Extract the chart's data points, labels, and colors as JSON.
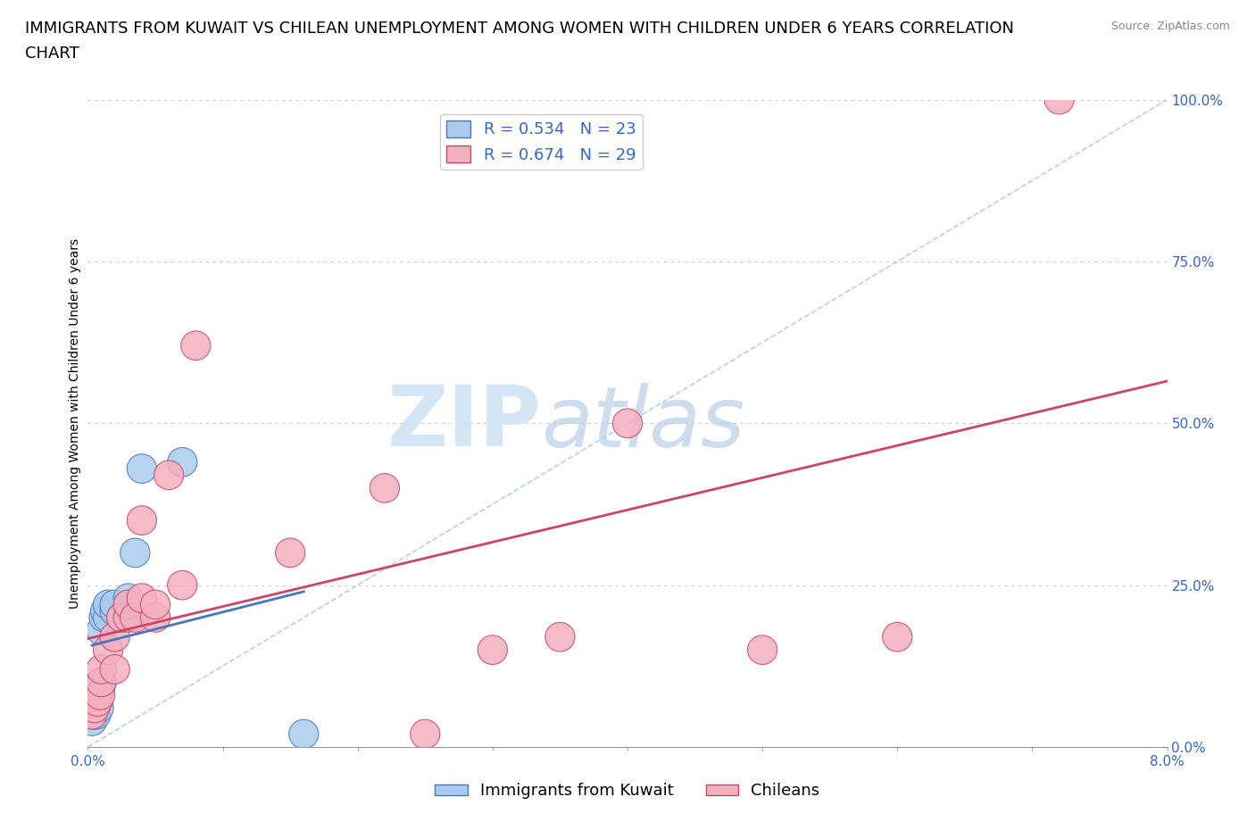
{
  "title_line1": "IMMIGRANTS FROM KUWAIT VS CHILEAN UNEMPLOYMENT AMONG WOMEN WITH CHILDREN UNDER 6 YEARS CORRELATION",
  "title_line2": "CHART",
  "source": "Source: ZipAtlas.com",
  "ylabel": "Unemployment Among Women with Children Under 6 years",
  "xlim": [
    0.0,
    0.08
  ],
  "ylim": [
    0.0,
    1.0
  ],
  "ytick_positions": [
    0.0,
    0.25,
    0.5,
    0.75,
    1.0
  ],
  "yticklabels": [
    "0.0%",
    "25.0%",
    "50.0%",
    "75.0%",
    "100.0%"
  ],
  "kuwait_R": 0.534,
  "kuwait_N": 23,
  "chilean_R": 0.674,
  "chilean_N": 29,
  "kuwait_color": "#aaccee",
  "chilean_color": "#f5b0c0",
  "kuwait_line_color": "#4477bb",
  "chilean_line_color": "#cc4466",
  "background_color": "#ffffff",
  "grid_color": "#cccccc",
  "watermark_color": "#d0e4f5",
  "tick_color": "#3366cc",
  "kuwait_x": [
    0.0003,
    0.0004,
    0.0005,
    0.0005,
    0.0006,
    0.0007,
    0.0008,
    0.0009,
    0.001,
    0.001,
    0.0012,
    0.0013,
    0.0015,
    0.0015,
    0.002,
    0.002,
    0.0025,
    0.003,
    0.003,
    0.0035,
    0.004,
    0.007,
    0.016
  ],
  "kuwait_y": [
    0.04,
    0.05,
    0.06,
    0.07,
    0.05,
    0.08,
    0.06,
    0.09,
    0.1,
    0.18,
    0.2,
    0.21,
    0.2,
    0.22,
    0.21,
    0.22,
    0.2,
    0.21,
    0.23,
    0.3,
    0.43,
    0.44,
    0.02
  ],
  "chilean_x": [
    0.0003,
    0.0005,
    0.0007,
    0.0009,
    0.001,
    0.001,
    0.0015,
    0.002,
    0.002,
    0.0025,
    0.003,
    0.003,
    0.0035,
    0.004,
    0.004,
    0.005,
    0.005,
    0.006,
    0.007,
    0.008,
    0.015,
    0.022,
    0.025,
    0.03,
    0.035,
    0.04,
    0.05,
    0.06,
    0.072
  ],
  "chilean_y": [
    0.05,
    0.06,
    0.07,
    0.08,
    0.1,
    0.12,
    0.15,
    0.12,
    0.17,
    0.2,
    0.2,
    0.22,
    0.2,
    0.23,
    0.35,
    0.2,
    0.22,
    0.42,
    0.25,
    0.62,
    0.3,
    0.4,
    0.02,
    0.15,
    0.17,
    0.5,
    0.15,
    0.17,
    1.0
  ],
  "title_fontsize": 13,
  "axis_label_fontsize": 10,
  "tick_fontsize": 11,
  "legend_fontsize": 13
}
